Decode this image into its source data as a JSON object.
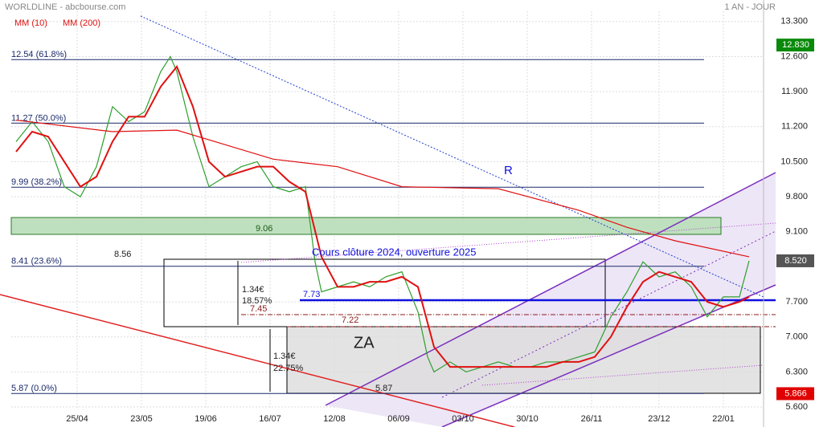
{
  "header": {
    "title": "WORLDLINE - abcbourse.com",
    "period": "1 AN - JOUR"
  },
  "chart_data": {
    "type": "line",
    "xlim": [
      -1.5,
      232.5
    ],
    "ylim": [
      5.2,
      13.73
    ],
    "xticks": [
      {
        "value": 19,
        "label": "25/04"
      },
      {
        "value": 39,
        "label": "23/05"
      },
      {
        "value": 59,
        "label": "19/06"
      },
      {
        "value": 79,
        "label": "16/07"
      },
      {
        "value": 99,
        "label": "12/08"
      },
      {
        "value": 119,
        "label": "06/09"
      },
      {
        "value": 139,
        "label": "03/10"
      },
      {
        "value": 159,
        "label": "30/10"
      },
      {
        "value": 179,
        "label": "26/11"
      },
      {
        "value": 200,
        "label": "23/12"
      },
      {
        "value": 220,
        "label": "22/01"
      }
    ],
    "yticks": [
      {
        "value": 5.6,
        "label": "5.600"
      },
      {
        "value": 6.3,
        "label": "6.300"
      },
      {
        "value": 7,
        "label": "7.000"
      },
      {
        "value": 7.7,
        "label": "7.700"
      },
      {
        "value": 9.1,
        "label": "9.100"
      },
      {
        "value": 9.8,
        "label": "9.800"
      },
      {
        "value": 10.5,
        "label": "10.500"
      },
      {
        "value": 11.2,
        "label": "11.200"
      },
      {
        "value": 11.9,
        "label": "11.900"
      },
      {
        "value": 12.6,
        "label": "12.600"
      },
      {
        "value": 13.3,
        "label": "13.300"
      }
    ],
    "grid": true,
    "series": [
      {
        "color": "#2e9e2e",
        "x": [
          0,
          5,
          10,
          15,
          20,
          25,
          30,
          35,
          40,
          45,
          48,
          50,
          55,
          60,
          65,
          70,
          75,
          80,
          85,
          90,
          93,
          95,
          100,
          105,
          110,
          115,
          120,
          125,
          128,
          130,
          135,
          140,
          145,
          150,
          155,
          160,
          165,
          170,
          175,
          180,
          185,
          190,
          195,
          200,
          205,
          210,
          215,
          220,
          225,
          228
        ],
        "values": [
          10.9,
          11.3,
          10.9,
          10.0,
          9.8,
          10.4,
          11.6,
          11.3,
          11.5,
          12.3,
          12.6,
          12.3,
          11.0,
          10.0,
          10.2,
          10.4,
          10.5,
          10.0,
          9.9,
          10.0,
          8.5,
          7.9,
          8.0,
          8.1,
          8.0,
          8.2,
          8.3,
          7.5,
          6.6,
          6.3,
          6.5,
          6.3,
          6.4,
          6.5,
          6.4,
          6.4,
          6.5,
          6.5,
          6.6,
          6.7,
          7.4,
          7.9,
          8.5,
          8.2,
          8.3,
          8.0,
          7.4,
          7.8,
          7.8,
          8.52
        ]
      },
      {
        "name": "MM (10)",
        "color": "#e01010",
        "x": [
          0,
          5,
          10,
          15,
          20,
          25,
          30,
          35,
          40,
          45,
          50,
          55,
          60,
          65,
          70,
          75,
          80,
          85,
          90,
          95,
          100,
          105,
          110,
          115,
          120,
          125,
          130,
          135,
          140,
          145,
          150,
          155,
          160,
          165,
          170,
          175,
          180,
          185,
          190,
          195,
          200,
          205,
          210,
          215,
          220,
          225,
          228
        ],
        "values": [
          10.7,
          11.1,
          11.0,
          10.5,
          10.0,
          10.2,
          10.9,
          11.4,
          11.4,
          12.0,
          12.4,
          11.6,
          10.5,
          10.2,
          10.3,
          10.4,
          10.4,
          10.1,
          9.9,
          8.6,
          8.0,
          8.0,
          8.1,
          8.1,
          8.2,
          8.0,
          6.8,
          6.4,
          6.4,
          6.4,
          6.4,
          6.4,
          6.4,
          6.4,
          6.5,
          6.5,
          6.6,
          7.0,
          7.6,
          8.1,
          8.3,
          8.2,
          8.1,
          7.7,
          7.6,
          7.7,
          7.8
        ]
      },
      {
        "name": "MM (200)",
        "color": "#e01010",
        "x": [
          0,
          30,
          50,
          80,
          100,
          120,
          150,
          175,
          190,
          205,
          228
        ],
        "values": [
          11.33,
          11.1,
          11.13,
          10.55,
          10.4,
          10.0,
          9.96,
          9.53,
          9.19,
          8.92,
          8.6
        ]
      }
    ],
    "levels": [
      {
        "value": 12.54,
        "label": "12.54 (61.8%)"
      },
      {
        "value": 11.27,
        "label": "11.27 (50.0%)"
      },
      {
        "value": 9.99,
        "label": "9.99 (38.2%)"
      },
      {
        "value": 8.41,
        "label": "8.41 (23.6%)"
      },
      {
        "value": 5.87,
        "label": "5.87 (0.0%)"
      }
    ],
    "price_tags": [
      {
        "value": 12.83,
        "label": "12.830",
        "color": "#0a8a0a"
      },
      {
        "value": 8.52,
        "label": "8.520",
        "color": "#555555"
      },
      {
        "value": 5.866,
        "label": "5.866",
        "color": "#e00000"
      }
    ],
    "annotations": [
      "9.06",
      "8.56",
      "Cours clôture 2024, ouverture 2025",
      "1.34€",
      "18.57%",
      "7.73",
      "7.45",
      "7.22",
      "ZA",
      "1.34€",
      "22.75%",
      "5.87",
      "R"
    ]
  }
}
